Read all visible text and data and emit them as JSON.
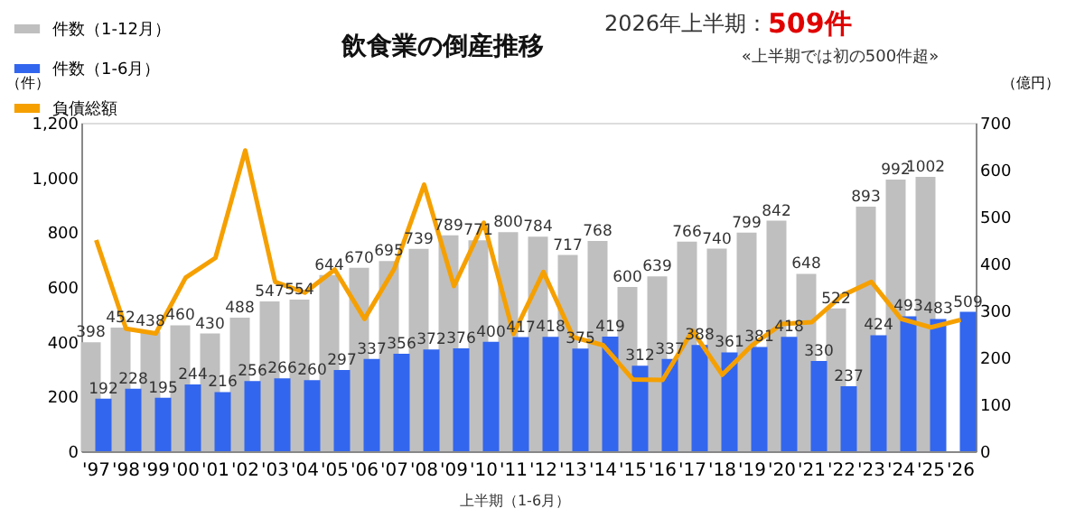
{
  "chart_data": {
    "type": "bar",
    "title": "飲食業の倒産推移",
    "ylabel": "（件）",
    "y2label": "（億円）",
    "categories": [
      "'97",
      "'98",
      "'99",
      "'00",
      "'01",
      "'02",
      "'03",
      "'04",
      "'05",
      "'06",
      "'07",
      "'08",
      "'09",
      "'10",
      "'11",
      "'12",
      "'13",
      "'14",
      "'15",
      "'16",
      "'17",
      "'18",
      "'19",
      "'20",
      "'21",
      "'22",
      "'23",
      "'24",
      "'25",
      "'26"
    ],
    "series": [
      {
        "name": "件数（1-12月）",
        "color": "#bfbfbf",
        "values": [
          398,
          452,
          438,
          460,
          430,
          488,
          547,
          554,
          644,
          670,
          695,
          739,
          789,
          771,
          800,
          784,
          717,
          768,
          600,
          639,
          766,
          740,
          799,
          842,
          648,
          522,
          893,
          992,
          1002,
          null
        ],
        "value_labels": [
          "398",
          "452",
          "438",
          "460",
          "430",
          "488",
          "547",
          "554",
          "644",
          "670",
          "695",
          "739",
          "789",
          "771",
          "800",
          "784",
          "717",
          "768",
          "600",
          "639",
          "766",
          "740",
          "799",
          "842",
          "648",
          "522",
          "893",
          "992",
          "1002",
          null
        ]
      },
      {
        "name": "件数（1-6月）",
        "color": "#3366ee",
        "values": [
          192,
          228,
          195,
          244,
          216,
          256,
          266,
          260,
          297,
          337,
          356,
          372,
          376,
          400,
          417,
          418,
          375,
          419,
          312,
          337,
          388,
          361,
          381,
          418,
          330,
          237,
          424,
          493,
          483,
          509
        ],
        "value_labels": [
          "192",
          "228",
          "195",
          "244",
          "216",
          "256",
          "266",
          "260",
          "297",
          "337",
          "356",
          "372",
          "376",
          "400",
          "417",
          "418",
          "375",
          "419",
          "312",
          "337",
          "388",
          "361",
          "381",
          "418",
          "330",
          "237",
          "424",
          "493",
          "483",
          "509"
        ]
      },
      {
        "name": "負債総額",
        "type": "line",
        "axis": "y2",
        "color": "#f5a000",
        "values": [
          450,
          261,
          251,
          370,
          412,
          641,
          361,
          338,
          387,
          282,
          389,
          568,
          352,
          487,
          250,
          382,
          243,
          226,
          153,
          152,
          257,
          163,
          226,
          271,
          275,
          331,
          361,
          282,
          264,
          280
        ]
      }
    ],
    "ylim": [
      0,
      1200
    ],
    "yticks": [
      0,
      200,
      400,
      600,
      800,
      {
        "value": 1000,
        "label": "1,000"
      },
      {
        "value": 1200,
        "label": "1,200"
      }
    ],
    "y2lim": [
      0,
      700
    ],
    "y2ticks": [
      0,
      100,
      200,
      300,
      400,
      500,
      600,
      700
    ],
    "legend": "top left",
    "grid": false,
    "annotations": [
      "2026年上半期：",
      "509件",
      "«上半期では初の500件超»",
      "上半期（1-6月）"
    ]
  }
}
